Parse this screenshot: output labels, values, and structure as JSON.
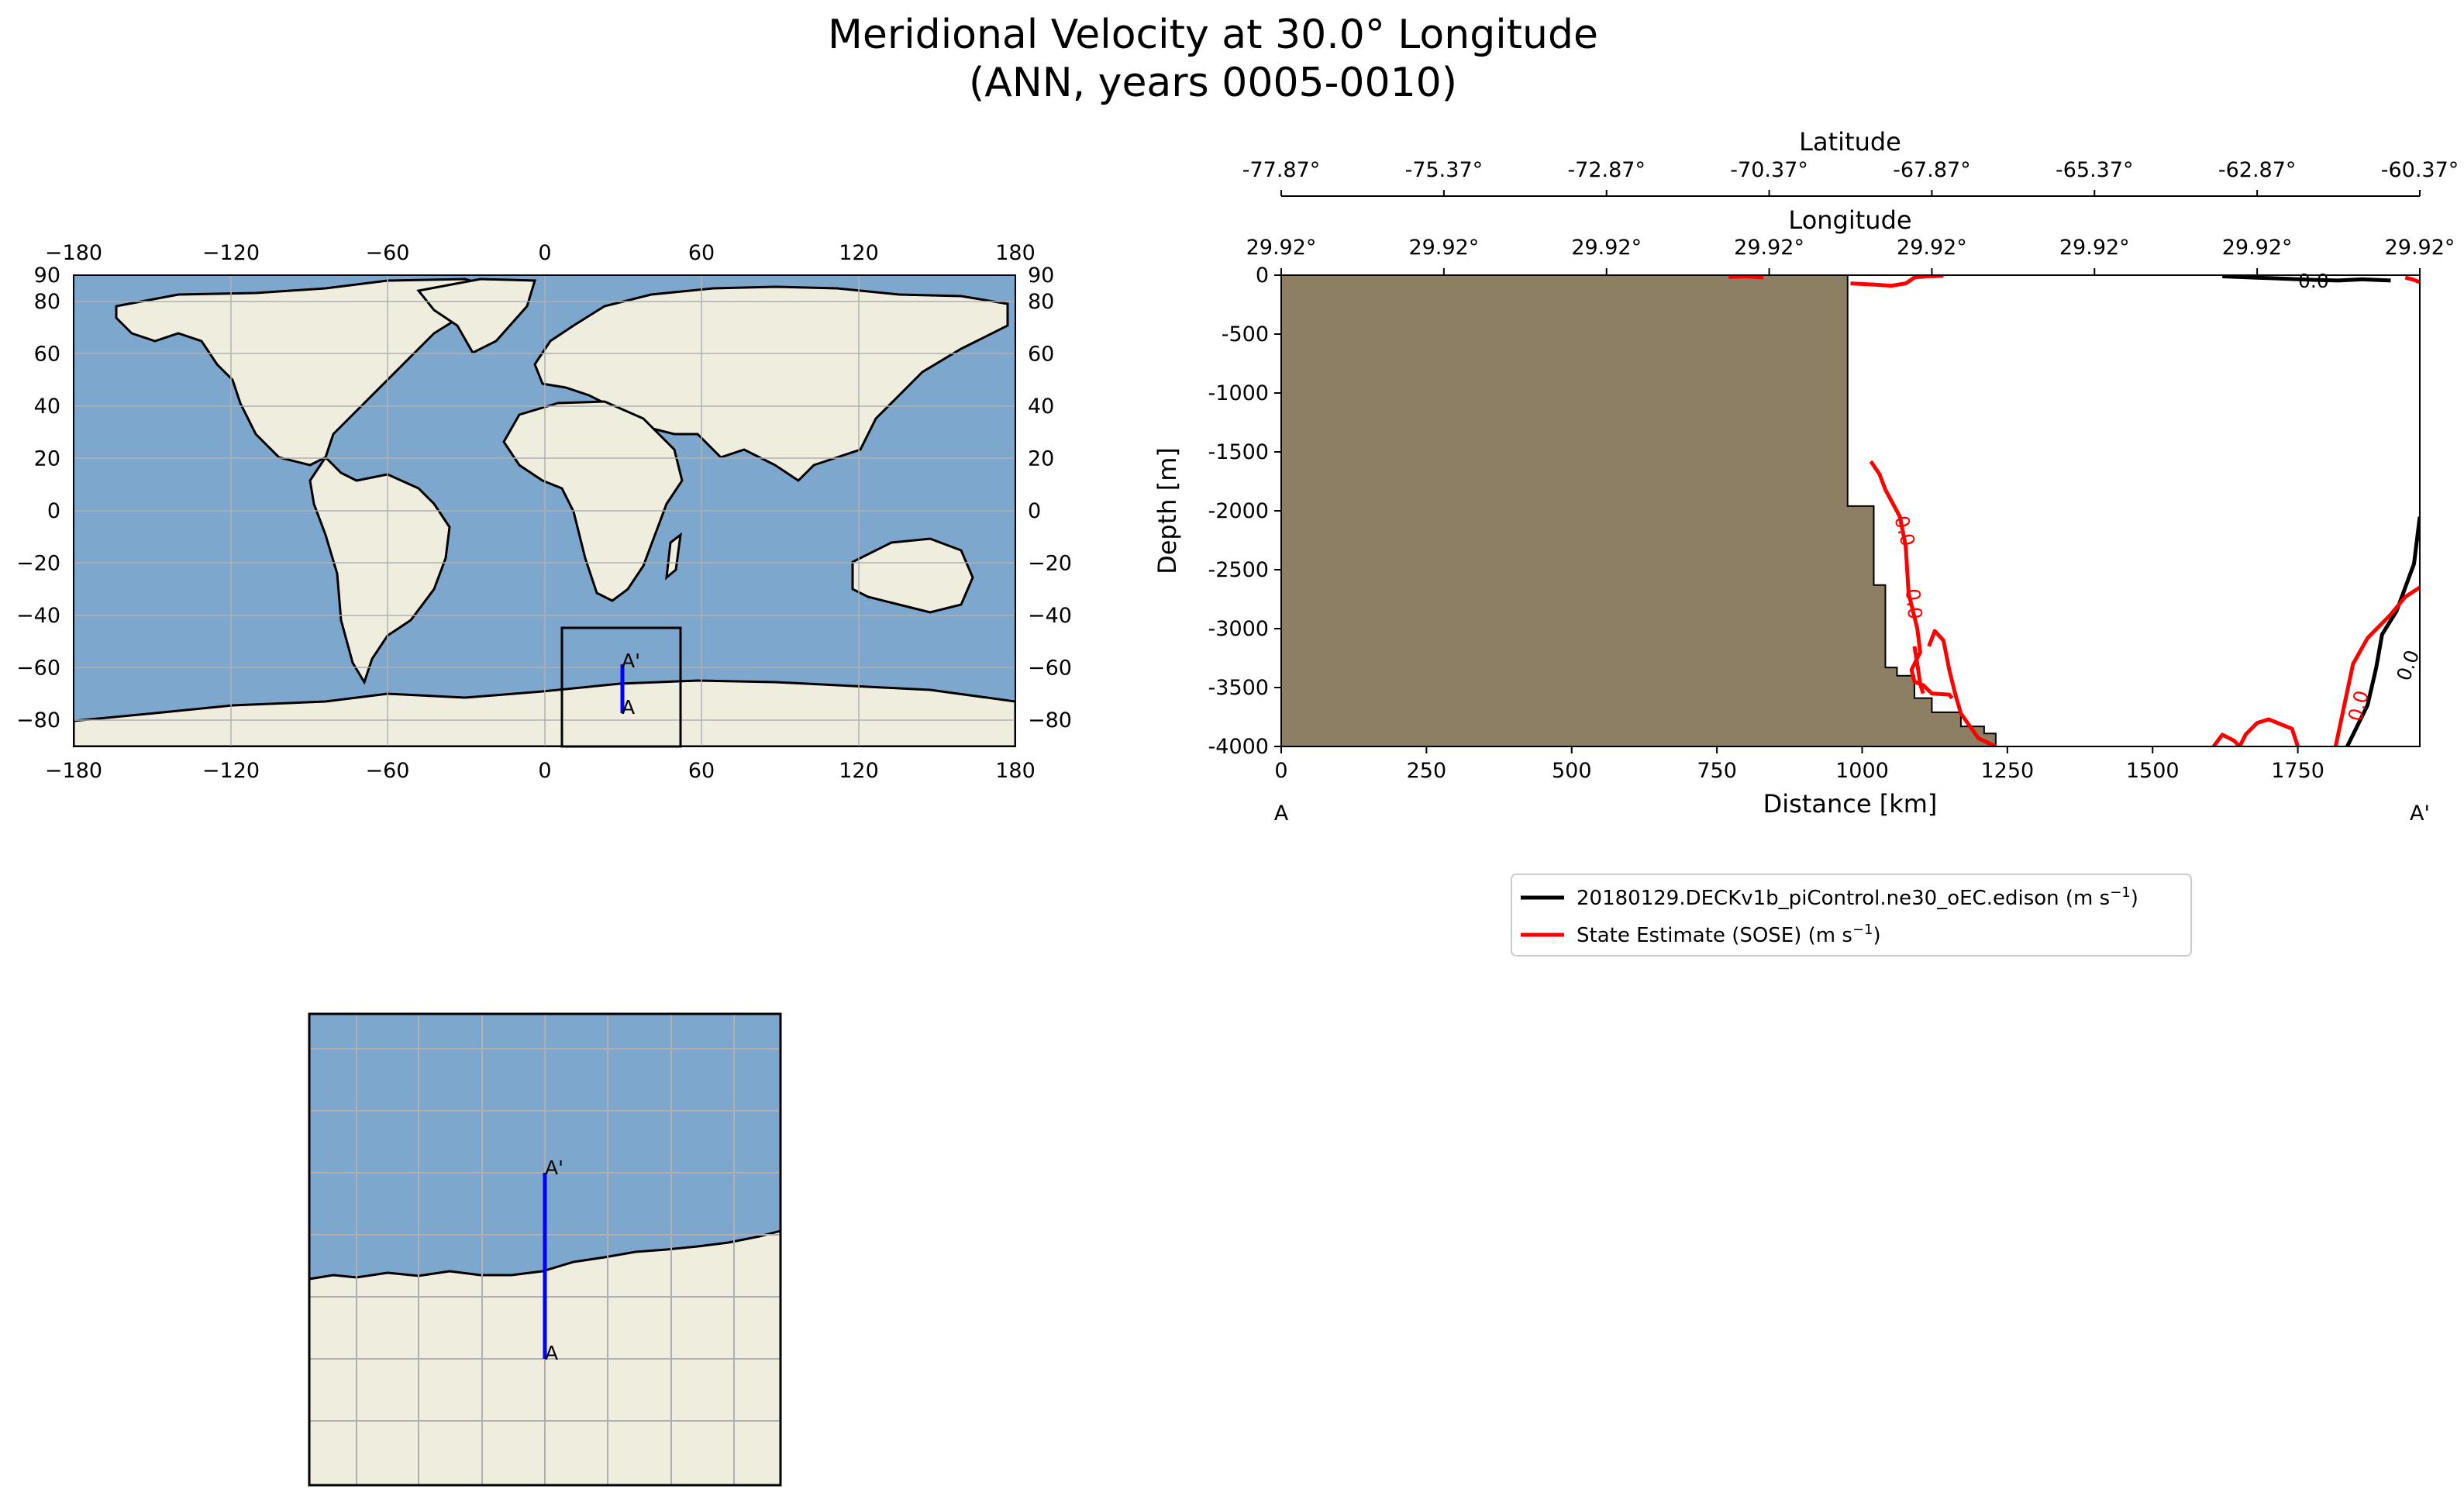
{
  "figure": {
    "title_line1": "Meridional Velocity at 30.0° Longitude",
    "title_line2": "(ANN, years 0005-0010)"
  },
  "world_map": {
    "x_ticks": [
      "−180",
      "−120",
      "−60",
      "0",
      "60",
      "120",
      "180"
    ],
    "y_ticks": [
      "90",
      "80",
      "60",
      "40",
      "20",
      "0",
      "−20",
      "−40",
      "−60",
      "−80"
    ],
    "y_tick_values": [
      90,
      80,
      60,
      40,
      20,
      0,
      -20,
      -40,
      -60,
      -80
    ],
    "transect_start_label": "A",
    "transect_end_label": "A'",
    "colors": {
      "ocean": "#7da7cc",
      "land": "#efeede",
      "transect": "#0000ff",
      "grid": "#b0b0b0"
    }
  },
  "inset_map": {
    "transect_start_label": "A",
    "transect_end_label": "A'"
  },
  "section": {
    "latitude_label": "Latitude",
    "latitude_ticks": [
      "-77.87°",
      "-75.37°",
      "-72.87°",
      "-70.37°",
      "-67.87°",
      "-65.37°",
      "-62.87°",
      "-60.37°"
    ],
    "longitude_label": "Longitude",
    "longitude_ticks": [
      "29.92°",
      "29.92°",
      "29.92°",
      "29.92°",
      "29.92°",
      "29.92°",
      "29.92°",
      "29.92°"
    ],
    "xlabel": "Distance [km]",
    "ylabel": "Depth [m]",
    "start_label": "A",
    "end_label": "A'",
    "contour_labels": {
      "model_top": "0.0",
      "model_right": "0.0",
      "obs_a": "0.0",
      "obs_b": "0.0",
      "obs_c": "0.0"
    },
    "colors": {
      "bathymetry": "#8c7f64",
      "model": "#000000",
      "obs": "#ff0000"
    }
  },
  "legend": {
    "model_label": "20180129.DECKv1b_piControl.ne30_oEC.edison (m s",
    "obs_label": "State Estimate (SOSE) (m s",
    "unit_sup": "−1",
    "unit_close": ")"
  },
  "chart_data": {
    "type": "line",
    "title": "Meridional Velocity at 30.0° Longitude (ANN, years 0005-0010)",
    "xlabel": "Distance [km]",
    "ylabel": "Depth [m]",
    "xlim": [
      0,
      1960
    ],
    "ylim": [
      -4000,
      0
    ],
    "x_ticks": [
      0,
      250,
      500,
      750,
      1000,
      1250,
      1500,
      1750
    ],
    "y_ticks": [
      0,
      -500,
      -1000,
      -1500,
      -2000,
      -2500,
      -3000,
      -3500,
      -4000
    ],
    "legend_position": "below",
    "bathymetry": {
      "x": [
        0,
        975,
        975,
        1020,
        1020,
        1040,
        1040,
        1060,
        1060,
        1090,
        1090,
        1120,
        1120,
        1170,
        1170,
        1210,
        1210,
        1230,
        1230
      ],
      "y": [
        0,
        0,
        -1960,
        -1960,
        -2630,
        -2630,
        -3330,
        -3330,
        -3400,
        -3400,
        -3590,
        -3590,
        -3710,
        -3710,
        -3830,
        -3830,
        -3890,
        -3890,
        -4000
      ]
    },
    "series": [
      {
        "name": "20180129.DECKv1b_piControl.ne30_oEC.edison (m s−1)",
        "label": "0.0",
        "lines": [
          {
            "x": [
              1620,
              1700,
              1780,
              1820,
              1860,
              1910
            ],
            "y": [
              -10,
              -25,
              -40,
              -45,
              -35,
              -45
            ]
          },
          {
            "x": [
              1835,
              1870,
              1885,
              1895,
              1920,
              1950,
              1960
            ],
            "y": [
              -4000,
              -3650,
              -3330,
              -3050,
              -2850,
              -2450,
              -2050
            ]
          }
        ]
      },
      {
        "name": "State Estimate (SOSE) (m s−1)",
        "label": "0.0",
        "lines": [
          {
            "x": [
              980,
              1020,
              1050,
              1075,
              1090,
              1110,
              1140
            ],
            "y": [
              -70,
              -80,
              -90,
              -70,
              -20,
              -10,
              -5
            ]
          },
          {
            "x": [
              1015,
              1030,
              1040,
              1065,
              1075,
              1080,
              1095,
              1100,
              1085,
              1090,
              1105,
              1120,
              1150,
              1155
            ],
            "y": [
              -1580,
              -1690,
              -1820,
              -2050,
              -2300,
              -2700,
              -3000,
              -3200,
              -3350,
              -3450,
              -3480,
              -3550,
              -3560,
              -3590
            ]
          },
          {
            "x": [
              1090,
              1095,
              1100,
              1105
            ],
            "y": [
              -3150,
              -3300,
              -3470,
              -3550
            ]
          },
          {
            "x": [
              1115,
              1125,
              1140,
              1150,
              1160,
              1170,
              1190,
              1200,
              1230
            ],
            "y": [
              -3150,
              -3020,
              -3100,
              -3350,
              -3550,
              -3720,
              -3860,
              -3930,
              -4000
            ]
          },
          {
            "x": [
              1605,
              1620,
              1640,
              1650,
              1660,
              1680,
              1700,
              1740,
              1750
            ],
            "y": [
              -4000,
              -3900,
              -3950,
              -4000,
              -3900,
              -3800,
              -3770,
              -3850,
              -4000
            ]
          },
          {
            "x": [
              1815,
              1830,
              1845,
              1870,
              1910,
              1935,
              1960
            ],
            "y": [
              -4000,
              -3650,
              -3300,
              -3080,
              -2880,
              -2730,
              -2650
            ]
          },
          {
            "x": [
              770,
              800,
              830
            ],
            "y": [
              -15,
              -10,
              -20
            ]
          },
          {
            "x": [
              1935,
              1950,
              1960
            ],
            "y": [
              -20,
              -40,
              -60
            ]
          }
        ]
      }
    ]
  }
}
